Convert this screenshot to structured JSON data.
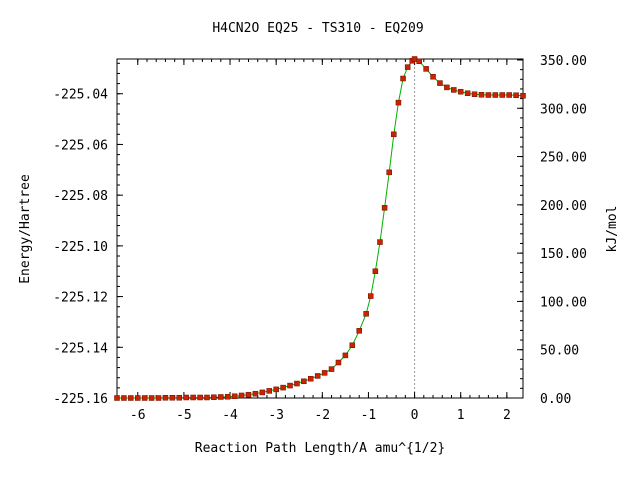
{
  "chart_data": {
    "type": "line",
    "title": "H4CN2O   EQ25 - TS310 - EQ209",
    "xlabel": "Reaction Path Length/A amu^{1/2}",
    "ylabel": "Energy/Hartree",
    "y2label": "kJ/mol",
    "xlim": [
      -6.45,
      2.35
    ],
    "ylim": [
      -225.16,
      -225.0263
    ],
    "y2lim": [
      0,
      351
    ],
    "xticks": [
      -6,
      -5,
      -4,
      -3,
      -2,
      -1,
      0,
      1,
      2
    ],
    "xtick_labels": [
      "-6",
      "-5",
      "-4",
      "-3",
      "-2",
      "-1",
      "0",
      "1",
      "2"
    ],
    "yticks": [
      -225.16,
      -225.14,
      -225.12,
      -225.1,
      -225.08,
      -225.06,
      -225.04
    ],
    "ytick_labels": [
      "-225.16",
      "-225.14",
      "-225.12",
      "-225.10",
      "-225.08",
      "-225.06",
      "-225.04"
    ],
    "y2ticks": [
      0,
      50,
      100,
      150,
      200,
      250,
      300,
      350
    ],
    "y2tick_labels": [
      "0.00",
      "50.00",
      "100.00",
      "150.00",
      "200.00",
      "250.00",
      "300.00",
      "350.00"
    ],
    "ts_x": 0,
    "grid": false,
    "colors": {
      "line": "#00b000",
      "marker": "#cc2200",
      "ts_line": "#999999"
    },
    "series": [
      {
        "x": [
          -6.45,
          -6.3,
          -6.15,
          -6.0,
          -5.85,
          -5.7,
          -5.55,
          -5.4,
          -5.25,
          -5.1,
          -4.95,
          -4.8,
          -4.65,
          -4.5,
          -4.35,
          -4.2,
          -4.05,
          -3.9,
          -3.75,
          -3.6,
          -3.45,
          -3.3,
          -3.15,
          -3.0,
          -2.85,
          -2.7,
          -2.55,
          -2.4,
          -2.25,
          -2.1,
          -1.95,
          -1.8,
          -1.65,
          -1.5,
          -1.35,
          -1.2,
          -1.05,
          -0.95,
          -0.85,
          -0.75,
          -0.65,
          -0.55,
          -0.45,
          -0.35,
          -0.25,
          -0.15,
          -0.05,
          0.0,
          0.1,
          0.25,
          0.4,
          0.55,
          0.7,
          0.85,
          1.0,
          1.15,
          1.3,
          1.45,
          1.6,
          1.75,
          1.9,
          2.05,
          2.2,
          2.35
        ],
        "y": [
          -225.16,
          -225.16,
          -225.16,
          -225.16,
          -225.16,
          -225.16,
          -225.16,
          -225.1599,
          -225.1599,
          -225.1599,
          -225.1598,
          -225.1598,
          -225.1598,
          -225.1598,
          -225.1597,
          -225.1596,
          -225.1595,
          -225.1593,
          -225.159,
          -225.1587,
          -225.1583,
          -225.1578,
          -225.1572,
          -225.1566,
          -225.1559,
          -225.1551,
          -225.1543,
          -225.1534,
          -225.1524,
          -225.1513,
          -225.1501,
          -225.1486,
          -225.146,
          -225.1432,
          -225.1392,
          -225.1335,
          -225.1268,
          -225.1198,
          -225.11,
          -225.0985,
          -225.085,
          -225.071,
          -225.056,
          -225.0435,
          -225.034,
          -225.0295,
          -225.027,
          -225.0263,
          -225.0272,
          -225.0302,
          -225.0333,
          -225.0358,
          -225.0375,
          -225.0385,
          -225.0392,
          -225.0398,
          -225.0402,
          -225.0404,
          -225.0405,
          -225.0405,
          -225.0405,
          -225.0405,
          -225.0406,
          -225.0408
        ]
      }
    ]
  }
}
